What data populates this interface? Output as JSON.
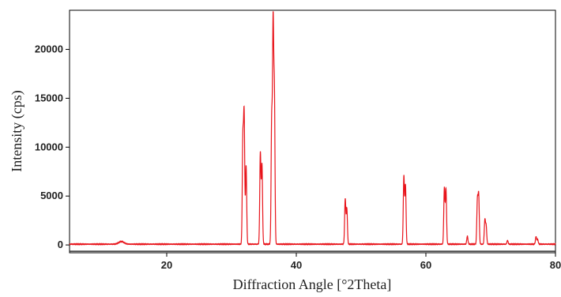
{
  "chart_data": {
    "type": "line",
    "title": "",
    "xlabel": "Diffraction Angle [°2Theta]",
    "ylabel": "Intensity (cps)",
    "xlim": [
      5,
      80
    ],
    "ylim": [
      -800,
      24000
    ],
    "x_ticks": [
      20,
      40,
      60,
      80
    ],
    "y_ticks": [
      0,
      5000,
      10000,
      15000,
      20000
    ],
    "x_tick_labels": [
      "20",
      "40",
      "60",
      "80"
    ],
    "y_tick_labels": [
      "0",
      "5000",
      "10000",
      "15000",
      "20000"
    ],
    "grid": false,
    "legend": "none",
    "line_color": "#e8141b",
    "baseline": 80,
    "series": [
      {
        "peaks": [
          {
            "x": 13.0,
            "y": 350
          },
          {
            "x": 24.0,
            "y": 80
          },
          {
            "x": 31.75,
            "y": 10600
          },
          {
            "x": 31.95,
            "y": 13100
          },
          {
            "x": 32.25,
            "y": 8100
          },
          {
            "x": 34.45,
            "y": 9400
          },
          {
            "x": 34.7,
            "y": 8200
          },
          {
            "x": 36.2,
            "y": 12600
          },
          {
            "x": 36.42,
            "y": 22000
          },
          {
            "x": 36.62,
            "y": 14900
          },
          {
            "x": 47.55,
            "y": 4700
          },
          {
            "x": 47.8,
            "y": 3700
          },
          {
            "x": 56.6,
            "y": 7000
          },
          {
            "x": 56.85,
            "y": 6100
          },
          {
            "x": 62.85,
            "y": 5800
          },
          {
            "x": 63.1,
            "y": 5700
          },
          {
            "x": 66.4,
            "y": 900
          },
          {
            "x": 67.95,
            "y": 4500
          },
          {
            "x": 68.15,
            "y": 5000
          },
          {
            "x": 69.1,
            "y": 2500
          },
          {
            "x": 69.3,
            "y": 1900
          },
          {
            "x": 72.6,
            "y": 450
          },
          {
            "x": 77.0,
            "y": 850
          },
          {
            "x": 77.25,
            "y": 550
          }
        ]
      }
    ]
  }
}
